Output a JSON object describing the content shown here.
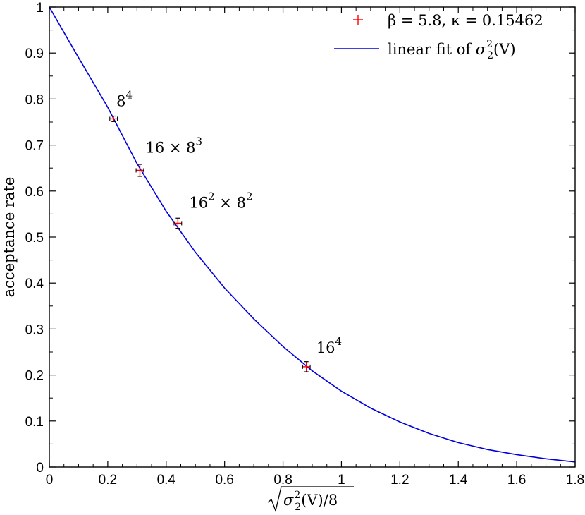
{
  "chart_data": {
    "type": "scatter",
    "xlim": [
      0,
      1.8
    ],
    "ylim": [
      0,
      1
    ],
    "x_ticks": [
      {
        "value": 0,
        "label": "0"
      },
      {
        "value": 0.2,
        "label": "0.2"
      },
      {
        "value": 0.4,
        "label": "0.4"
      },
      {
        "value": 0.6,
        "label": "0.6"
      },
      {
        "value": 0.8,
        "label": "0.8"
      },
      {
        "value": 1,
        "label": "1"
      },
      {
        "value": 1.2,
        "label": "1.2"
      },
      {
        "value": 1.4,
        "label": "1.4"
      },
      {
        "value": 1.6,
        "label": "1.6"
      },
      {
        "value": 1.8,
        "label": "1.8"
      }
    ],
    "y_ticks": [
      {
        "value": 0,
        "label": "0"
      },
      {
        "value": 0.1,
        "label": "0.1"
      },
      {
        "value": 0.2,
        "label": "0.2"
      },
      {
        "value": 0.3,
        "label": "0.3"
      },
      {
        "value": 0.4,
        "label": "0.4"
      },
      {
        "value": 0.5,
        "label": "0.5"
      },
      {
        "value": 0.6,
        "label": "0.6"
      },
      {
        "value": 0.7,
        "label": "0.7"
      },
      {
        "value": 0.8,
        "label": "0.8"
      },
      {
        "value": 0.9,
        "label": "0.9"
      },
      {
        "value": 1,
        "label": "1"
      }
    ],
    "ylabel": "acceptance rate",
    "xlabel": {
      "inner": "σ",
      "sub": "2",
      "sup": "2",
      "rest": "(V)/8"
    },
    "grid": false,
    "legend_position": "top-right",
    "series": [
      {
        "kind": "points",
        "color": "#ff0000",
        "legend": {
          "beta_label": "β = 5.8",
          "kappa_label": "κ = 0.15462"
        },
        "points": [
          {
            "x": 0.22,
            "y": 0.757,
            "xerr": 0.013,
            "yerr": 0.006,
            "label": {
              "base": "8",
              "sup": "4"
            }
          },
          {
            "x": 0.31,
            "y": 0.645,
            "xerr": 0.013,
            "yerr": 0.013,
            "label": {
              "base": "16 × 8",
              "sup": "3"
            }
          },
          {
            "x": 0.44,
            "y": 0.53,
            "xerr": 0.013,
            "yerr": 0.011,
            "label": {
              "base": "16",
              "sup": "2",
              "rest": " × 8",
              "sup2": "2"
            }
          },
          {
            "x": 0.88,
            "y": 0.218,
            "xerr": 0.013,
            "yerr": 0.011,
            "label": {
              "base": "16",
              "sup": "4"
            }
          }
        ]
      },
      {
        "kind": "line",
        "color": "#0000dd",
        "legend": {
          "prefix": "linear fit of ",
          "sym": "σ",
          "sub": "2",
          "sup": "2",
          "rest": "(V)"
        },
        "points": [
          {
            "x": 0,
            "y": 1
          },
          {
            "x": 0.1,
            "y": 0.89
          },
          {
            "x": 0.2,
            "y": 0.782
          },
          {
            "x": 0.3,
            "y": 0.66
          },
          {
            "x": 0.4,
            "y": 0.556
          },
          {
            "x": 0.5,
            "y": 0.467
          },
          {
            "x": 0.6,
            "y": 0.389
          },
          {
            "x": 0.7,
            "y": 0.322
          },
          {
            "x": 0.8,
            "y": 0.262
          },
          {
            "x": 0.9,
            "y": 0.209
          },
          {
            "x": 1,
            "y": 0.165
          },
          {
            "x": 1.1,
            "y": 0.128
          },
          {
            "x": 1.2,
            "y": 0.098
          },
          {
            "x": 1.3,
            "y": 0.073
          },
          {
            "x": 1.4,
            "y": 0.053
          },
          {
            "x": 1.5,
            "y": 0.038
          },
          {
            "x": 1.6,
            "y": 0.027
          },
          {
            "x": 1.7,
            "y": 0.018
          },
          {
            "x": 1.8,
            "y": 0.011
          }
        ]
      }
    ]
  }
}
